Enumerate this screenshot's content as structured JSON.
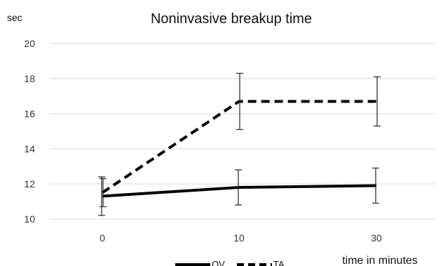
{
  "chart_data": {
    "type": "line",
    "title": "Noninvasive breakup time",
    "ylabel": "sec",
    "xlabel": "time in minutes",
    "categories": [
      "0",
      "10",
      "30"
    ],
    "ylim": [
      10,
      20
    ],
    "yticks": [
      10,
      12,
      14,
      16,
      18,
      20
    ],
    "grid": true,
    "legend_position": "bottom",
    "series": [
      {
        "name": "OV",
        "style": "solid",
        "color": "#000000",
        "values": [
          11.3,
          11.8,
          11.9
        ],
        "error": [
          1.1,
          1.0,
          1.0
        ]
      },
      {
        "name": "TA",
        "style": "dashed",
        "color": "#000000",
        "values": [
          11.5,
          16.7,
          16.7
        ],
        "error": [
          0.8,
          1.6,
          1.4
        ]
      }
    ]
  }
}
